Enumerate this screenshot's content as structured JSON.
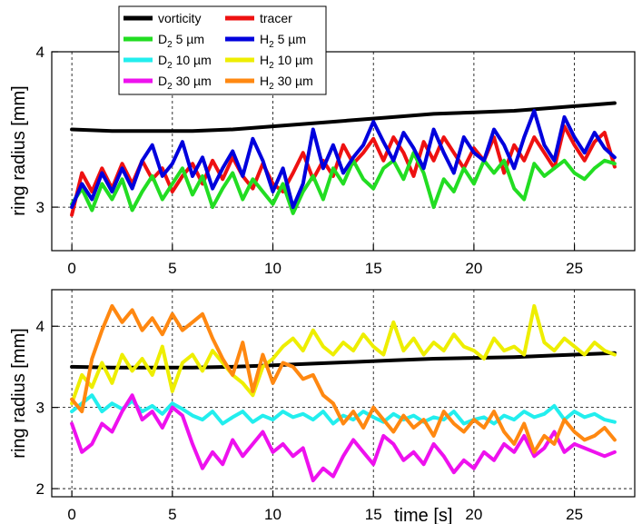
{
  "chart_data": [
    {
      "type": "line",
      "xlabel": "",
      "ylabel": "ring radius [mm]",
      "xlim": [
        -1,
        28
      ],
      "ylim": [
        2.72,
        4.0
      ],
      "xticks": [
        0,
        5,
        10,
        15,
        20,
        25
      ],
      "yticks": [
        3,
        4
      ],
      "grid": true,
      "legend_position": "top-left",
      "legend": [
        {
          "label": "vorticity",
          "color": "#000000"
        },
        {
          "label": "tracer",
          "color": "#ee1111"
        },
        {
          "label": "D2 5 µm",
          "sym": "D",
          "sub": "2",
          "rest": " 5 µm",
          "color": "#22dd22"
        },
        {
          "label": "H2 5 µm",
          "sym": "H",
          "sub": "2",
          "rest": " 5 µm",
          "color": "#0000dd"
        },
        {
          "label": "D2 10 µm",
          "sym": "D",
          "sub": "2",
          "rest": " 10 µm",
          "color": "#22eeee"
        },
        {
          "label": "H2 10 µm",
          "sym": "H",
          "sub": "2",
          "rest": " 10 µm",
          "color": "#eeee00"
        },
        {
          "label": "D2 30 µm",
          "sym": "D",
          "sub": "2",
          "rest": " 30 µm",
          "color": "#ee11ee"
        },
        {
          "label": "H2 30 µm",
          "sym": "H",
          "sub": "2",
          "rest": " 30 µm",
          "color": "#ff8811"
        }
      ],
      "series": [
        {
          "name": "vorticity",
          "color": "#000000",
          "x": [
            0,
            2,
            4,
            6,
            8,
            10,
            12,
            14,
            16,
            18,
            20,
            22,
            24,
            26,
            27
          ],
          "y": [
            3.5,
            3.49,
            3.49,
            3.49,
            3.5,
            3.52,
            3.54,
            3.56,
            3.58,
            3.6,
            3.61,
            3.62,
            3.64,
            3.66,
            3.67
          ]
        },
        {
          "name": "tracer",
          "color": "#ee1111",
          "x": [
            0,
            0.5,
            1,
            1.5,
            2,
            2.5,
            3,
            3.5,
            4,
            4.5,
            5,
            5.5,
            6,
            6.5,
            7,
            7.5,
            8,
            8.5,
            9,
            9.5,
            10,
            10.5,
            11,
            11.5,
            12,
            12.5,
            13,
            13.5,
            14,
            14.5,
            15,
            15.5,
            16,
            16.5,
            17,
            17.5,
            18,
            18.5,
            19,
            19.5,
            20,
            20.5,
            21,
            21.5,
            22,
            22.5,
            23,
            23.5,
            24,
            24.5,
            25,
            25.5,
            26,
            26.5,
            27
          ],
          "y": [
            2.95,
            3.22,
            3.1,
            3.25,
            3.12,
            3.28,
            3.15,
            3.3,
            3.18,
            3.25,
            3.1,
            3.2,
            3.28,
            3.15,
            3.3,
            3.18,
            3.32,
            3.2,
            3.12,
            3.28,
            3.15,
            3.1,
            3.22,
            3.35,
            3.18,
            3.3,
            3.2,
            3.4,
            3.28,
            3.35,
            3.44,
            3.3,
            3.45,
            3.35,
            3.2,
            3.42,
            3.3,
            3.45,
            3.35,
            3.25,
            3.38,
            3.3,
            3.45,
            3.22,
            3.4,
            3.3,
            3.45,
            3.35,
            3.25,
            3.52,
            3.4,
            3.3,
            3.42,
            3.48,
            3.26
          ]
        },
        {
          "name": "D2 5 µm",
          "color": "#22dd22",
          "x": [
            0,
            0.5,
            1,
            1.5,
            2,
            2.5,
            3,
            3.5,
            4,
            4.5,
            5,
            5.5,
            6,
            6.5,
            7,
            7.5,
            8,
            8.5,
            9,
            9.5,
            10,
            10.5,
            11,
            11.5,
            12,
            12.5,
            13,
            13.5,
            14,
            14.5,
            15,
            15.5,
            16,
            16.5,
            17,
            17.5,
            18,
            18.5,
            19,
            19.5,
            20,
            20.5,
            21,
            21.5,
            22,
            22.5,
            23,
            23.5,
            24,
            24.5,
            25,
            25.5,
            26,
            26.5,
            27
          ],
          "y": [
            3.02,
            3.12,
            2.98,
            3.15,
            3.05,
            3.18,
            2.98,
            3.1,
            3.2,
            3.05,
            3.15,
            3.25,
            3.08,
            3.2,
            3.0,
            3.12,
            3.22,
            3.05,
            3.18,
            3.1,
            3.02,
            3.15,
            2.96,
            3.1,
            3.2,
            3.05,
            3.25,
            3.15,
            3.3,
            3.18,
            3.12,
            3.25,
            3.3,
            3.18,
            3.35,
            3.22,
            3.0,
            3.18,
            3.1,
            3.25,
            3.15,
            3.3,
            3.22,
            3.3,
            3.12,
            3.05,
            3.28,
            3.2,
            3.25,
            3.3,
            3.22,
            3.18,
            3.25,
            3.3,
            3.28
          ]
        },
        {
          "name": "H2 5 µm",
          "color": "#0000dd",
          "x": [
            0,
            0.5,
            1,
            1.5,
            2,
            2.5,
            3,
            3.5,
            4,
            4.5,
            5,
            5.5,
            6,
            6.5,
            7,
            7.5,
            8,
            8.5,
            9,
            9.5,
            10,
            10.5,
            11,
            11.5,
            12,
            12.5,
            13,
            13.5,
            14,
            14.5,
            15,
            15.5,
            16,
            16.5,
            17,
            17.5,
            18,
            18.5,
            19,
            19.5,
            20,
            20.5,
            21,
            21.5,
            22,
            22.5,
            23,
            23.5,
            24,
            24.5,
            25,
            25.5,
            26,
            26.5,
            27
          ],
          "y": [
            3.0,
            3.15,
            3.05,
            3.22,
            3.1,
            3.25,
            3.12,
            3.3,
            3.4,
            3.2,
            3.28,
            3.42,
            3.2,
            3.32,
            3.12,
            3.25,
            3.36,
            3.2,
            3.44,
            3.3,
            3.1,
            3.25,
            3.0,
            3.15,
            3.5,
            3.25,
            3.4,
            3.22,
            3.32,
            3.4,
            3.55,
            3.42,
            3.3,
            3.48,
            3.38,
            3.25,
            3.5,
            3.35,
            3.22,
            3.45,
            3.35,
            3.3,
            3.5,
            3.4,
            3.25,
            3.45,
            3.62,
            3.4,
            3.3,
            3.58,
            3.45,
            3.35,
            3.48,
            3.38,
            3.32
          ]
        },
        {
          "name": "tracer",
          "color": "#ee1111",
          "x": [],
          "y": []
        }
      ]
    },
    {
      "type": "line",
      "xlabel": "time [s]",
      "ylabel": "ring radius [mm]",
      "xlim": [
        -1,
        28
      ],
      "ylim": [
        1.9,
        4.45
      ],
      "xticks": [
        0,
        5,
        10,
        15,
        20,
        25
      ],
      "yticks": [
        2,
        3,
        4
      ],
      "grid": true,
      "series": [
        {
          "name": "vorticity",
          "color": "#000000",
          "x": [
            0,
            2,
            4,
            6,
            8,
            10,
            12,
            14,
            16,
            18,
            20,
            22,
            24,
            26,
            27
          ],
          "y": [
            3.5,
            3.49,
            3.49,
            3.49,
            3.5,
            3.52,
            3.54,
            3.56,
            3.58,
            3.6,
            3.61,
            3.62,
            3.64,
            3.66,
            3.67
          ]
        },
        {
          "name": "H2 10 µm",
          "color": "#eeee00",
          "x": [
            0,
            0.5,
            1,
            1.5,
            2,
            2.5,
            3,
            3.5,
            4,
            4.5,
            5,
            5.5,
            6,
            6.5,
            7,
            7.5,
            8,
            8.5,
            9,
            9.5,
            10,
            10.5,
            11,
            11.5,
            12,
            12.5,
            13,
            13.5,
            14,
            14.5,
            15,
            15.5,
            16,
            16.5,
            17,
            17.5,
            18,
            18.5,
            19,
            19.5,
            20,
            20.5,
            21,
            21.5,
            22,
            22.5,
            23,
            23.5,
            24,
            24.5,
            25,
            25.5,
            26,
            26.5,
            27
          ],
          "y": [
            3.05,
            3.4,
            3.25,
            3.55,
            3.3,
            3.65,
            3.45,
            3.6,
            3.4,
            3.75,
            3.2,
            3.55,
            3.65,
            3.45,
            3.7,
            3.55,
            3.4,
            3.3,
            3.15,
            3.5,
            3.6,
            3.75,
            3.85,
            3.7,
            3.95,
            3.75,
            3.65,
            3.8,
            3.7,
            3.9,
            3.75,
            3.65,
            4.05,
            3.7,
            3.85,
            3.65,
            3.8,
            3.7,
            3.9,
            3.75,
            3.7,
            3.6,
            3.85,
            3.7,
            3.75,
            3.65,
            4.25,
            3.8,
            3.7,
            3.85,
            3.75,
            3.65,
            3.8,
            3.7,
            3.65
          ]
        },
        {
          "name": "D2 10 µm",
          "color": "#22eeee",
          "x": [
            0,
            0.5,
            1,
            1.5,
            2,
            2.5,
            3,
            3.5,
            4,
            4.5,
            5,
            5.5,
            6,
            6.5,
            7,
            7.5,
            8,
            8.5,
            9,
            9.5,
            10,
            10.5,
            11,
            11.5,
            12,
            12.5,
            13,
            13.5,
            14,
            14.5,
            15,
            15.5,
            16,
            16.5,
            17,
            17.5,
            18,
            18.5,
            19,
            19.5,
            20,
            20.5,
            21,
            21.5,
            22,
            22.5,
            23,
            23.5,
            24,
            24.5,
            25,
            25.5,
            26,
            26.5,
            27
          ],
          "y": [
            2.95,
            3.05,
            3.15,
            2.95,
            3.05,
            2.98,
            3.08,
            2.95,
            3.02,
            2.92,
            3.05,
            2.98,
            2.9,
            2.85,
            2.95,
            2.8,
            2.88,
            2.95,
            2.82,
            2.9,
            2.85,
            2.95,
            2.88,
            2.92,
            2.85,
            2.95,
            2.8,
            2.9,
            2.85,
            2.95,
            2.88,
            2.82,
            2.92,
            2.85,
            2.9,
            2.82,
            2.88,
            2.85,
            2.95,
            2.8,
            2.85,
            2.88,
            2.8,
            2.9,
            2.85,
            2.95,
            2.88,
            2.92,
            3.02,
            2.85,
            2.95,
            2.88,
            2.92,
            2.85,
            2.82
          ]
        },
        {
          "name": "D2 30 µm",
          "color": "#ee11ee",
          "x": [
            0,
            0.5,
            1,
            1.5,
            2,
            2.5,
            3,
            3.5,
            4,
            4.5,
            5,
            5.5,
            6,
            6.5,
            7,
            7.5,
            8,
            8.5,
            9,
            9.5,
            10,
            10.5,
            11,
            11.5,
            12,
            12.5,
            13,
            13.5,
            14,
            14.5,
            15,
            15.5,
            16,
            16.5,
            17,
            17.5,
            18,
            18.5,
            19,
            19.5,
            20,
            20.5,
            21,
            21.5,
            22,
            22.5,
            23,
            23.5,
            24,
            24.5,
            25,
            25.5,
            26,
            26.5,
            27
          ],
          "y": [
            2.8,
            2.45,
            2.55,
            2.8,
            2.7,
            2.95,
            3.15,
            2.85,
            2.95,
            2.75,
            3.0,
            2.9,
            2.55,
            2.25,
            2.45,
            2.3,
            2.6,
            2.4,
            2.55,
            2.7,
            2.45,
            2.55,
            2.4,
            2.5,
            2.1,
            2.25,
            2.15,
            2.4,
            2.6,
            2.45,
            2.3,
            2.65,
            2.55,
            2.35,
            2.45,
            2.3,
            2.55,
            2.4,
            2.2,
            2.35,
            2.25,
            2.45,
            2.35,
            2.55,
            2.45,
            2.65,
            2.4,
            2.5,
            2.7,
            2.45,
            2.55,
            2.5,
            2.45,
            2.4,
            2.45
          ]
        },
        {
          "name": "H2 30 µm",
          "color": "#ff8811",
          "x": [
            0,
            0.5,
            1,
            1.5,
            2,
            2.5,
            3,
            3.5,
            4,
            4.5,
            5,
            5.5,
            6,
            6.5,
            7,
            7.5,
            8,
            8.5,
            9,
            9.5,
            10,
            10.5,
            11,
            11.5,
            12,
            12.5,
            13,
            13.5,
            14,
            14.5,
            15,
            15.5,
            16,
            16.5,
            17,
            17.5,
            18,
            18.5,
            19,
            19.5,
            20,
            20.5,
            21,
            21.5,
            22,
            22.5,
            23,
            23.5,
            24,
            24.5,
            25,
            25.5,
            26,
            26.5,
            27
          ],
          "y": [
            3.1,
            2.95,
            3.6,
            3.95,
            4.25,
            4.05,
            4.2,
            3.95,
            4.1,
            3.9,
            4.15,
            3.95,
            4.05,
            4.15,
            3.85,
            3.6,
            3.4,
            3.8,
            3.2,
            3.65,
            3.3,
            3.55,
            3.5,
            3.35,
            3.4,
            3.15,
            3.05,
            2.8,
            2.95,
            2.75,
            3.0,
            2.85,
            2.7,
            2.9,
            2.75,
            2.85,
            2.65,
            2.95,
            2.8,
            2.7,
            2.85,
            2.75,
            2.95,
            2.7,
            2.55,
            2.8,
            2.45,
            2.65,
            2.55,
            2.85,
            2.7,
            2.6,
            2.65,
            2.75,
            2.6
          ]
        }
      ]
    }
  ]
}
